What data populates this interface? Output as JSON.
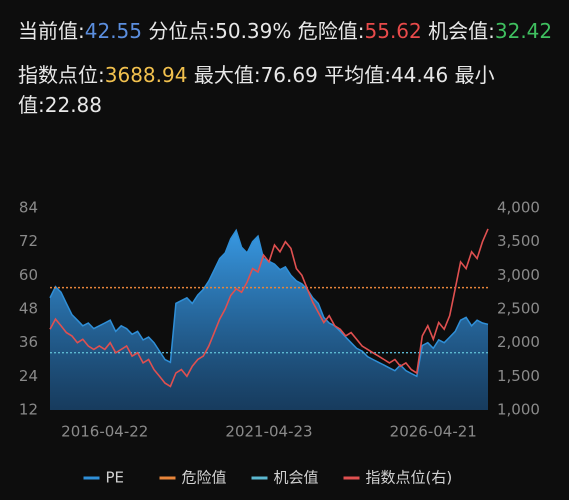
{
  "header": {
    "line1": [
      {
        "label": "当前值:",
        "value": "42.55",
        "color": "#5b8ede"
      },
      {
        "label": "分位点:",
        "value": "50.39%",
        "color": "#e8e8e8"
      },
      {
        "label": "危险值:",
        "value": "55.62",
        "color": "#e84a4a"
      },
      {
        "label": "机会值:",
        "value": "32.42",
        "color": "#3fbf5f"
      }
    ],
    "line2": [
      {
        "label": "指数点位:",
        "value": "3688.94",
        "color": "#f2c14e"
      },
      {
        "label": "最大值:",
        "value": "76.69",
        "color": "#e8e8e8"
      },
      {
        "label": "平均值:",
        "value": "44.46",
        "color": "#e8e8e8"
      },
      {
        "label": "最小值:",
        "value": "22.88",
        "color": "#e8e8e8"
      }
    ]
  },
  "chart_data": {
    "type": "line",
    "categories": [
      null,
      null,
      null,
      null,
      null,
      null,
      null,
      null,
      null,
      null,
      "2016-04-22",
      null,
      null,
      null,
      null,
      null,
      null,
      null,
      null,
      null,
      null,
      null,
      null,
      null,
      null,
      null,
      null,
      null,
      null,
      null,
      null,
      null,
      null,
      null,
      null,
      null,
      null,
      null,
      null,
      null,
      "2021-04-23",
      null,
      null,
      null,
      null,
      null,
      null,
      null,
      null,
      null,
      null,
      null,
      null,
      null,
      null,
      null,
      null,
      null,
      null,
      null,
      null,
      null,
      null,
      null,
      null,
      null,
      null,
      null,
      null,
      null,
      "2026-04-21",
      null,
      null,
      null,
      null,
      null,
      null,
      null,
      null,
      null,
      null
    ],
    "series": [
      {
        "name": "PE",
        "color": "#2f8fd8",
        "area": true,
        "values": [
          52,
          56,
          54,
          50,
          46,
          44,
          42,
          43,
          41,
          42,
          43,
          44,
          40,
          42,
          41,
          39,
          40,
          37,
          38,
          36,
          33,
          30,
          29,
          50,
          51,
          52,
          50,
          53,
          55,
          58,
          62,
          66,
          68,
          73,
          76,
          70,
          68,
          72,
          74,
          66,
          65,
          64,
          62,
          63,
          60,
          58,
          57,
          55,
          52,
          50,
          45,
          43,
          42,
          40,
          38,
          36,
          34,
          33,
          31,
          30,
          29,
          28,
          27,
          26,
          28,
          26,
          25,
          24,
          35,
          36,
          34,
          37,
          36,
          38,
          40,
          44,
          45,
          42,
          44,
          43,
          42.55
        ]
      },
      {
        "name": "危险值",
        "color": "#e8853a",
        "value": 55.62
      },
      {
        "name": "机会值",
        "color": "#5bb8d0",
        "value": 32.42
      },
      {
        "name": "指数点位(右)",
        "color": "#e05050",
        "axis": "y2",
        "values": [
          2200,
          2350,
          2250,
          2150,
          2100,
          2000,
          2050,
          1950,
          1900,
          1950,
          1900,
          2000,
          1850,
          1900,
          1950,
          1800,
          1850,
          1700,
          1750,
          1600,
          1500,
          1400,
          1350,
          1550,
          1600,
          1500,
          1650,
          1750,
          1800,
          1950,
          2150,
          2350,
          2500,
          2700,
          2800,
          2750,
          2900,
          3100,
          3050,
          3300,
          3200,
          3450,
          3350,
          3500,
          3400,
          3100,
          3000,
          2800,
          2600,
          2450,
          2300,
          2400,
          2250,
          2200,
          2100,
          2150,
          2050,
          1950,
          1900,
          1850,
          1800,
          1750,
          1700,
          1750,
          1650,
          1700,
          1600,
          1550,
          2100,
          2250,
          2050,
          2300,
          2200,
          2400,
          2800,
          3200,
          3100,
          3350,
          3250,
          3500,
          3688.94
        ]
      }
    ],
    "ylim": [
      12,
      84
    ],
    "yticks": [
      12,
      24,
      36,
      48,
      60,
      72,
      84
    ],
    "y2lim": [
      1000,
      4000
    ],
    "y2ticks": [
      {
        "value": 1000,
        "label": "1,000"
      },
      {
        "value": 1500,
        "label": "1,500"
      },
      {
        "value": 2000,
        "label": "2,000"
      },
      {
        "value": 2500,
        "label": "2,500"
      },
      {
        "value": 3000,
        "label": "3,000"
      },
      {
        "value": 3500,
        "label": "3,500"
      },
      {
        "value": 4000,
        "label": "4,000"
      }
    ],
    "grid": false,
    "legend": "bottom"
  }
}
